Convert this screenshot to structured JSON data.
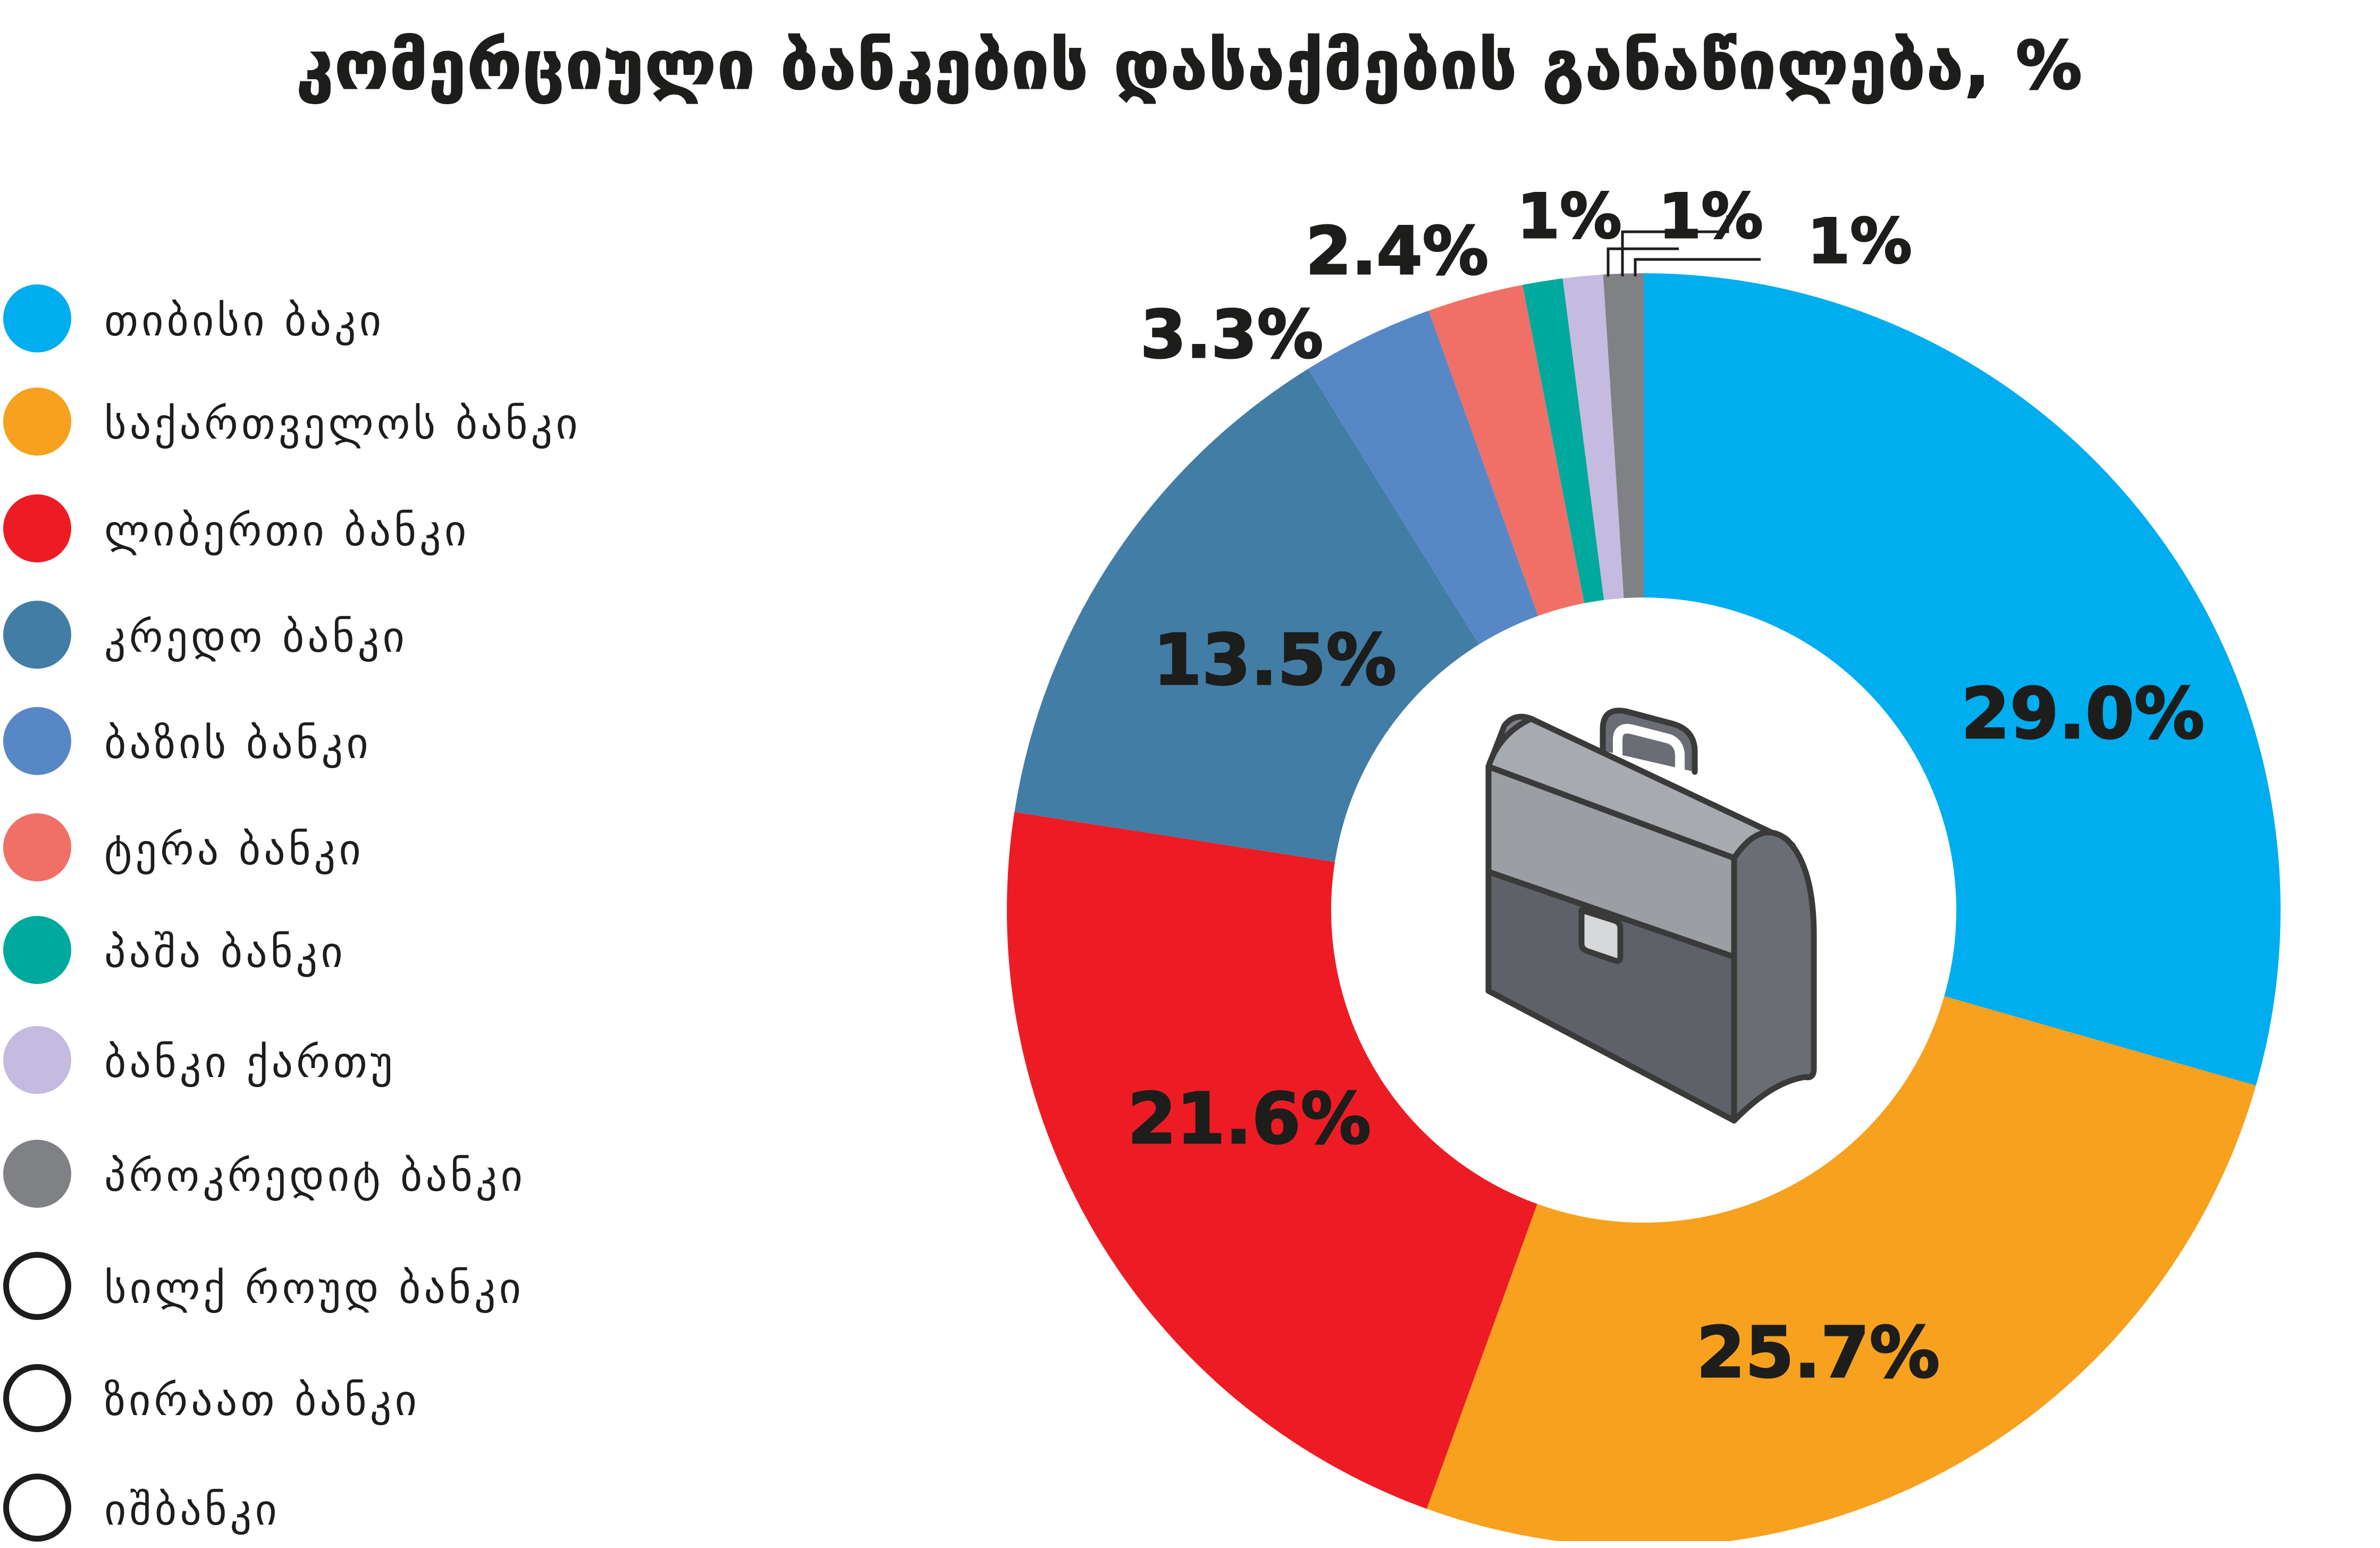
{
  "chart_data": {
    "type": "pie",
    "title": "კომერციული ბანკების დასაქმების განაწილება, %",
    "segments": [
      {
        "name": "თიბისი ბაკი",
        "value": 29.0,
        "label": "29.0%",
        "color": "#00adef"
      },
      {
        "name": "საქართველოს ბანკი",
        "value": 25.7,
        "label": "25.7%",
        "color": "#f7a11e"
      },
      {
        "name": "ლიბერთი ბანკი",
        "value": 21.6,
        "label": "21.6%",
        "color": "#ed1c24"
      },
      {
        "name": "კრედო ბანკი",
        "value": 13.5,
        "label": "13.5%",
        "color": "#427da6"
      },
      {
        "name": "ბაზის ბანკი",
        "value": 3.3,
        "label": "3.3%",
        "color": "#5887c6"
      },
      {
        "name": "ტერა ბანკი",
        "value": 2.4,
        "label": "2.4%",
        "color": "#f07067"
      },
      {
        "name": "პაშა ბანკი",
        "value": 1,
        "label": "",
        "color": "#00a99d"
      },
      {
        "name": "ბანკი ქართუ",
        "value": 1,
        "label": "1%",
        "color": "#c5bbe0"
      },
      {
        "name": "პროკრედიტ ბანკი",
        "value": 1,
        "label": "1%",
        "color": "#808184"
      },
      {
        "name": "სილქ როუდ ბანკი",
        "value": 0,
        "label": "",
        "color": "#ffffff"
      },
      {
        "name": "ზირაათ ბანკი",
        "value": 0,
        "label": "",
        "color": "#ffffff"
      },
      {
        "name": "იშბანკი",
        "value": 0,
        "label": "",
        "color": "#ffffff"
      }
    ],
    "extra_labels": [
      "1%"
    ]
  },
  "center_icon": "briefcase-icon",
  "colors": {
    "text": "#1d1d1b",
    "background": "#ffffff"
  }
}
